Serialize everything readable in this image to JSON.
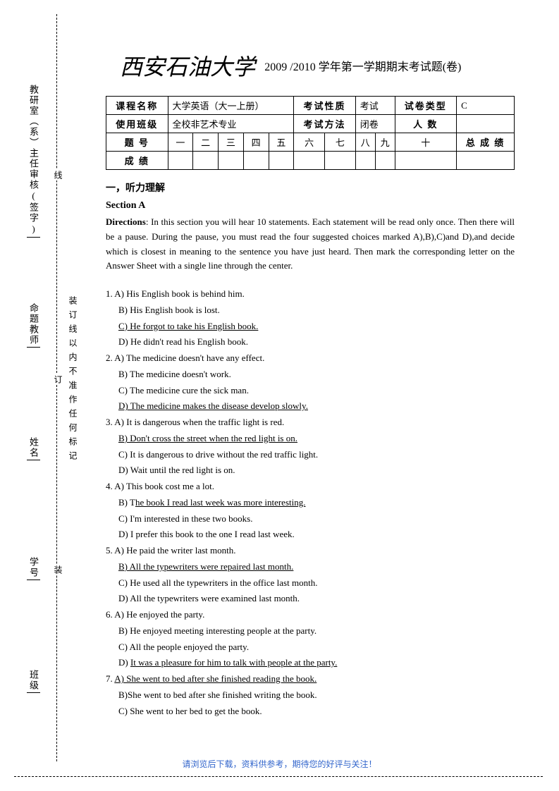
{
  "left_margin": {
    "dept": "教研室（系）主任审核(签字)",
    "teacher": "命题教师",
    "name": "姓名",
    "id": "学号",
    "class": "班级",
    "xian": "线",
    "ding": "订",
    "zhuang": "装",
    "binding_note": "装订线以内不准作任何标记"
  },
  "header": {
    "university": "西安石油大学",
    "exam_title": "2009 /2010 学年第一学期期末考试题(卷)"
  },
  "info_table": {
    "row1": {
      "course_label": "课程名称",
      "course": "大学英语（大一上册）",
      "nature_label": "考试性质",
      "nature": "考试",
      "type_label": "试卷类型",
      "type": "C"
    },
    "row2": {
      "class_label": "使用班级",
      "class": "全校非艺术专业",
      "method_label": "考试方法",
      "method": "闭卷",
      "count_label": "人    数",
      "count": ""
    },
    "row3": {
      "q_label": "题    号",
      "cols": [
        "一",
        "二",
        "三",
        "四",
        "五",
        "六",
        "七",
        "八",
        "九",
        "十"
      ],
      "total_label": "总 成 绩"
    },
    "row4": {
      "score_label": "成    绩"
    }
  },
  "section": {
    "title": "一，听力理解",
    "sub": "Section A",
    "dir_label": "Directions",
    "directions": ": In this section you will hear 10 statements. Each statement will be read only once. Then there will be a pause. During the pause, you must read the four suggested choices marked A),B),C)and D),and decide which is closest in meaning to the sentence you have just heard. Then mark the corresponding letter on the Answer Sheet with a single line through the center."
  },
  "questions": [
    {
      "num": "1.",
      "opts": [
        {
          "t": "A) His English book is behind him.",
          "u": false
        },
        {
          "t": "B) His English book is lost.",
          "u": false
        },
        {
          "t": "C) He forgot to take his English book.",
          "u": true
        },
        {
          "t": "D) He didn't read his English book.",
          "u": false
        }
      ]
    },
    {
      "num": "2.",
      "opts": [
        {
          "t": "A) The medicine doesn't have any effect.",
          "u": false
        },
        {
          "t": "B) The medicine doesn't work.",
          "u": false
        },
        {
          "t": "C) The medicine cure the sick man.",
          "u": false
        },
        {
          "t": "D) The medicine makes the disease develop slowly.",
          "u": true
        }
      ]
    },
    {
      "num": "3.",
      "opts": [
        {
          "t": "A) It is dangerous when the traffic light is red.",
          "u": false
        },
        {
          "t": "B) Don't cross the street when the red light is on.",
          "u": true
        },
        {
          "t": "C) It is dangerous to drive without the red traffic light.",
          "u": false
        },
        {
          "t": "D) Wait until the red light is on.",
          "u": false
        }
      ]
    },
    {
      "num": "4.",
      "opts": [
        {
          "t": "A) This book cost me a lot.",
          "u": false
        },
        {
          "t": "B) The book I read last week was more interesting.",
          "u": true,
          "prefix": "B) T"
        },
        {
          "t": "C) I'm interested in these two books.",
          "u": false
        },
        {
          "t": "D) I prefer this book to the one I read last week.",
          "u": false
        }
      ]
    },
    {
      "num": "5.",
      "opts": [
        {
          "t": "A) He paid the writer last month.",
          "u": false
        },
        {
          "t": "B) All the typewriters were repaired last month.",
          "u": true
        },
        {
          "t": "C) He used all the typewriters in the office last month.",
          "u": false
        },
        {
          "t": "D) All the typewriters were examined last month.",
          "u": false
        }
      ]
    },
    {
      "num": "6.",
      "opts": [
        {
          "t": "A) He enjoyed the party.",
          "u": false
        },
        {
          "t": "B) He enjoyed meeting interesting people at the party.",
          "u": false
        },
        {
          "t": "C) All the people enjoyed the party.",
          "u": false
        },
        {
          "t": "D) It was a pleasure for him to talk with people at the party.",
          "u": true,
          "prefix": "D) "
        }
      ]
    },
    {
      "num": "7.",
      "opts": [
        {
          "t": "A) She went to bed after she finished reading the book.",
          "u": true
        },
        {
          "t": "B)She went to bed after she finished writing the book.",
          "u": false
        },
        {
          "t": "C) She went to her bed to get the book.",
          "u": false
        }
      ]
    }
  ],
  "footer": "请浏览后下载，资料供参考，期待您的好评与关注！"
}
